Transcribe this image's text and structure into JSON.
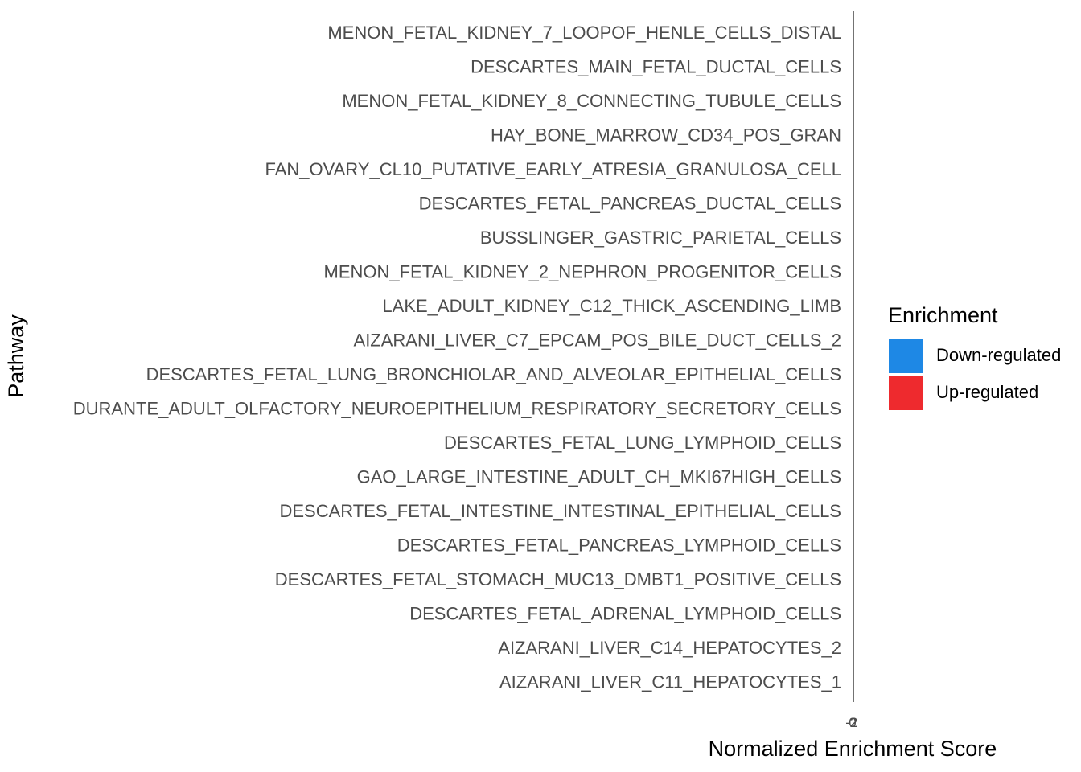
{
  "chart_data": {
    "type": "bar",
    "orientation": "horizontal",
    "xlabel": "Normalized Enrichment Score",
    "ylabel": "Pathway",
    "x_tick_labels": [
      "-2",
      "0",
      "2"
    ],
    "grid": false,
    "legend": {
      "title": "Enrichment",
      "placement": "right",
      "entries": [
        {
          "label": "Down-regulated",
          "color": "#1E88E5"
        },
        {
          "label": "Up-regulated",
          "color": "#EE2A2E"
        }
      ]
    },
    "categories": [
      "MENON_FETAL_KIDNEY_7_LOOPOF_HENLE_CELLS_DISTAL",
      "DESCARTES_MAIN_FETAL_DUCTAL_CELLS",
      "MENON_FETAL_KIDNEY_8_CONNECTING_TUBULE_CELLS",
      "HAY_BONE_MARROW_CD34_POS_GRAN",
      "FAN_OVARY_CL10_PUTATIVE_EARLY_ATRESIA_GRANULOSA_CELL",
      "DESCARTES_FETAL_PANCREAS_DUCTAL_CELLS",
      "BUSSLINGER_GASTRIC_PARIETAL_CELLS",
      "MENON_FETAL_KIDNEY_2_NEPHRON_PROGENITOR_CELLS",
      "LAKE_ADULT_KIDNEY_C12_THICK_ASCENDING_LIMB",
      "AIZARANI_LIVER_C7_EPCAM_POS_BILE_DUCT_CELLS_2",
      "DESCARTES_FETAL_LUNG_BRONCHIOLAR_AND_ALVEOLAR_EPITHELIAL_CELLS",
      "DURANTE_ADULT_OLFACTORY_NEUROEPITHELIUM_RESPIRATORY_SECRETORY_CELLS",
      "DESCARTES_FETAL_LUNG_LYMPHOID_CELLS",
      "GAO_LARGE_INTESTINE_ADULT_CH_MKI67HIGH_CELLS",
      "DESCARTES_FETAL_INTESTINE_INTESTINAL_EPITHELIAL_CELLS",
      "DESCARTES_FETAL_PANCREAS_LYMPHOID_CELLS",
      "DESCARTES_FETAL_STOMACH_MUC13_DMBT1_POSITIVE_CELLS",
      "DESCARTES_FETAL_ADRENAL_LYMPHOID_CELLS",
      "AIZARANI_LIVER_C14_HEPATOCYTES_2",
      "AIZARANI_LIVER_C11_HEPATOCYTES_1"
    ]
  }
}
